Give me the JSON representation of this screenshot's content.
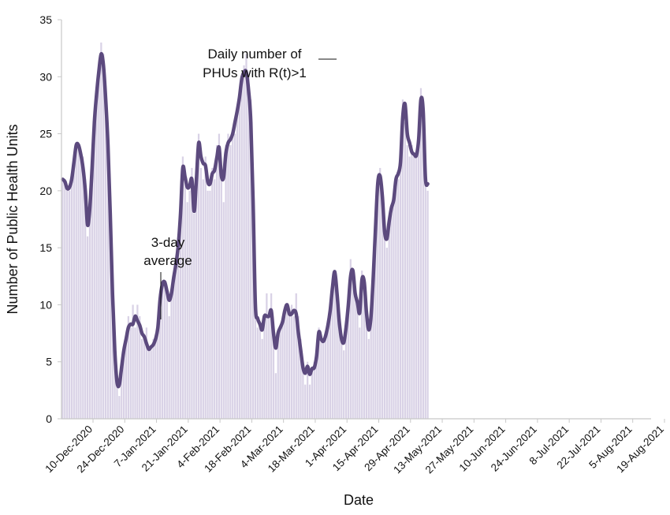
{
  "chart_data": {
    "type": "bar",
    "xlabel": "Date",
    "ylabel": "Number of Public Health Units",
    "ylim": [
      0,
      35
    ],
    "yticks": [
      0,
      5,
      10,
      15,
      20,
      25,
      30,
      35
    ],
    "xtick_labels": [
      "10-Dec-2020",
      "24-Dec-2020",
      "7-Jan-2021",
      "21-Jan-2021",
      "4-Feb-2021",
      "18-Feb-2021",
      "4-Mar-2021",
      "18-Mar-2021",
      "1-Apr-2021",
      "15-Apr-2021",
      "29-Apr-2021",
      "13-May-2021",
      "27-May-2021",
      "10-Jun-2021",
      "24-Jun-2021",
      "8-Jul-2021",
      "22-Jul-2021",
      "5-Aug-2021",
      "19-Aug-2021"
    ],
    "x_start": "2020-12-10",
    "x_end": "2021-08-26",
    "grid": false,
    "bar_color": "#d9d2e6",
    "line_color": "#5c4a7e",
    "annotations": {
      "daily": "Daily number of\nPHUs with R(t)>1",
      "average": "3-day\naverage"
    },
    "series": [
      {
        "name": "Daily number of PHUs with R(t)>1",
        "kind": "bar",
        "values": [
          21,
          21,
          20,
          20,
          21,
          23,
          24,
          24,
          23,
          23,
          21,
          16,
          18,
          22,
          26,
          28,
          30,
          33,
          32,
          28,
          24,
          18,
          10,
          5,
          3,
          2,
          4,
          6,
          7,
          9,
          8,
          10,
          8,
          10,
          9,
          7,
          7,
          8,
          6,
          6,
          7,
          7,
          8,
          10,
          12,
          12,
          11,
          9,
          11,
          12,
          13,
          15,
          17,
          23,
          21,
          19,
          20,
          22,
          18,
          20,
          25,
          22,
          21,
          23,
          20,
          20,
          22,
          21,
          24,
          25,
          21,
          19,
          24,
          25,
          24,
          25,
          25,
          27,
          28,
          30,
          31,
          32,
          30,
          28,
          19,
          9,
          8,
          8,
          7,
          9,
          11,
          9,
          11,
          8,
          4,
          7,
          8,
          9,
          9,
          10,
          9,
          10,
          9,
          11,
          9,
          7,
          5,
          3,
          5,
          3,
          4,
          5,
          5,
          8,
          7,
          7,
          7,
          8,
          9,
          11,
          13,
          11,
          9,
          7,
          6,
          8,
          10,
          14,
          13,
          11,
          10,
          8,
          13,
          12,
          9,
          7,
          9,
          13,
          17,
          21,
          22,
          19,
          16,
          15,
          17,
          18,
          19,
          21,
          21,
          23,
          28,
          26,
          24,
          23,
          24,
          23,
          23,
          25,
          29,
          26,
          21,
          20
        ]
      },
      {
        "name": "3-day average",
        "kind": "line",
        "values": [
          21,
          20.8,
          20.2,
          20.3,
          21,
          22.5,
          24,
          24,
          23.2,
          22,
          20,
          17,
          18.5,
          22,
          26,
          28.5,
          30.5,
          32,
          31,
          28,
          24,
          18,
          11,
          6,
          3.2,
          3,
          4.5,
          6,
          7,
          8,
          8.3,
          8.3,
          9,
          8.6,
          8.2,
          7.5,
          7.2,
          6.6,
          6.1,
          6.3,
          6.5,
          7,
          8,
          10.5,
          11.8,
          12,
          11.2,
          10.4,
          11,
          12.4,
          13.6,
          15.2,
          18,
          22,
          21.2,
          20.3,
          20.4,
          21,
          18.2,
          21,
          24.2,
          23,
          22.4,
          22.2,
          20.8,
          20.6,
          21.5,
          21.8,
          22.9,
          23.8,
          21.3,
          21.2,
          23.3,
          24.2,
          24.5,
          25,
          26,
          27,
          28.2,
          29.8,
          30.4,
          30.4,
          28.8,
          26,
          19,
          10,
          8.8,
          8.3,
          7.8,
          9,
          9,
          9,
          9.5,
          7.5,
          6.2,
          7.5,
          8,
          8.5,
          9.5,
          10,
          9.2,
          9.2,
          9.5,
          9.2,
          7.5,
          6,
          4.5,
          4,
          4.6,
          3.9,
          4.4,
          4.5,
          5.5,
          7.6,
          7,
          6.8,
          7.3,
          8.2,
          9.5,
          11.5,
          12.9,
          11,
          8.5,
          7,
          6.7,
          8,
          10,
          12.5,
          13,
          11,
          10.2,
          9.3,
          12.2,
          12,
          9.3,
          7.8,
          9,
          12.5,
          16.8,
          20.7,
          21.3,
          19.5,
          16.4,
          15.8,
          17.3,
          18.5,
          19.2,
          21,
          21.5,
          22.5,
          26.5,
          27.6,
          25,
          24.2,
          23.4,
          23.2,
          23.1,
          24.5,
          28,
          27,
          21.1,
          20.6
        ]
      }
    ]
  }
}
